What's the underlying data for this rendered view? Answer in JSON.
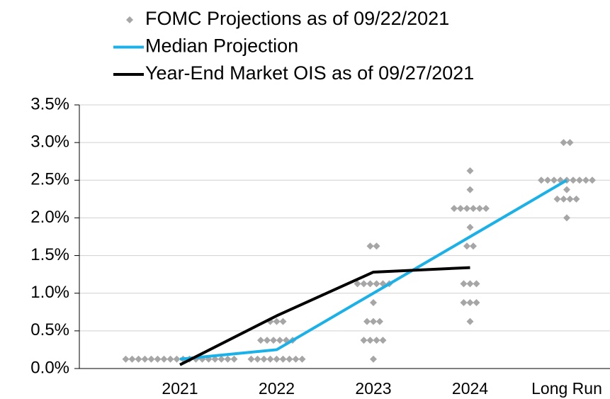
{
  "chart_data": {
    "type": "dotplot",
    "categories": [
      "2021",
      "2022",
      "2023",
      "2024",
      "Long Run"
    ],
    "series": [
      {
        "name": "FOMC Projections as of 09/22/2021",
        "color": "#a6a6a6",
        "kind": "dots",
        "values": [
          [
            0.125,
            0.125,
            0.125,
            0.125,
            0.125,
            0.125,
            0.125,
            0.125,
            0.125,
            0.125,
            0.125,
            0.125,
            0.125,
            0.125,
            0.125,
            0.125,
            0.125,
            0.125
          ],
          [
            0.625,
            0.625,
            0.625,
            0.375,
            0.375,
            0.375,
            0.375,
            0.375,
            0.375,
            0.125,
            0.125,
            0.125,
            0.125,
            0.125,
            0.125,
            0.125,
            0.125,
            0.125
          ],
          [
            1.625,
            1.625,
            1.125,
            1.125,
            1.125,
            1.125,
            1.125,
            1.125,
            0.875,
            0.625,
            0.625,
            0.625,
            0.375,
            0.375,
            0.375,
            0.375,
            0.125
          ],
          [
            2.625,
            2.375,
            2.125,
            2.125,
            2.125,
            2.125,
            2.125,
            2.125,
            1.875,
            1.625,
            1.625,
            1.125,
            1.125,
            1.125,
            0.875,
            0.875,
            0.875,
            0.625
          ],
          [
            3.0,
            3.0,
            2.5,
            2.5,
            2.5,
            2.5,
            2.5,
            2.5,
            2.5,
            2.5,
            2.5,
            2.375,
            2.25,
            2.25,
            2.25,
            2.25,
            2.0
          ]
        ]
      },
      {
        "name": "Median Projection",
        "color": "#1ab0e8",
        "kind": "line",
        "values": [
          0.125,
          0.25,
          1.0,
          1.75,
          2.5
        ]
      },
      {
        "name": "Year-End Market OIS as of 09/27/2021",
        "color": "#000000",
        "kind": "line",
        "values": [
          0.05,
          0.7,
          1.28,
          1.34,
          null
        ]
      }
    ],
    "ylim": [
      0,
      3.5
    ],
    "yticks": [
      {
        "value": 0,
        "label": "0.0%"
      },
      {
        "value": 0.5,
        "label": "0.5%"
      },
      {
        "value": 1.0,
        "label": "1.0%"
      },
      {
        "value": 1.5,
        "label": "1.5%"
      },
      {
        "value": 2.0,
        "label": "2.0%"
      },
      {
        "value": 2.5,
        "label": "2.5%"
      },
      {
        "value": 3.0,
        "label": "3.0%"
      },
      {
        "value": 3.5,
        "label": "3.5%"
      }
    ],
    "grid": true
  }
}
